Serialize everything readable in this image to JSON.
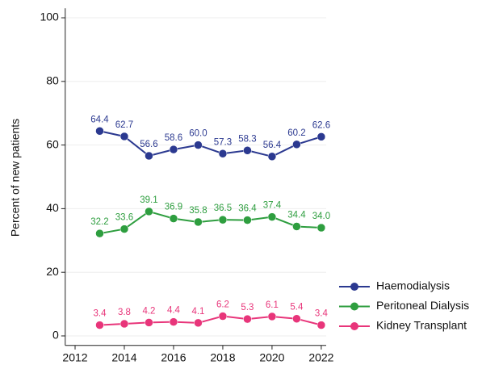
{
  "chart_data": {
    "type": "line",
    "y_label": "Percent of new patients",
    "x": [
      2013,
      2014,
      2015,
      2016,
      2017,
      2018,
      2019,
      2020,
      2021,
      2022
    ],
    "series": [
      {
        "name": "Haemodialysis",
        "color": "#2b3990",
        "values": [
          64.4,
          62.7,
          56.6,
          58.6,
          60.0,
          57.3,
          58.3,
          56.4,
          60.2,
          62.6
        ],
        "value_labels": [
          "64.4",
          "62.7",
          "56.6",
          "58.6",
          "60.0",
          "57.3",
          "58.3",
          "56.4",
          "60.2",
          "62.6"
        ]
      },
      {
        "name": "Peritoneal Dialysis",
        "color": "#2e9e3f",
        "values": [
          32.2,
          33.6,
          39.1,
          36.9,
          35.8,
          36.5,
          36.4,
          37.4,
          34.4,
          34.0
        ],
        "value_labels": [
          "32.2",
          "33.6",
          "39.1",
          "36.9",
          "35.8",
          "36.5",
          "36.4",
          "37.4",
          "34.4",
          "34.0"
        ]
      },
      {
        "name": "Kidney Transplant",
        "color": "#e8357a",
        "values": [
          3.4,
          3.8,
          4.2,
          4.4,
          4.1,
          6.2,
          5.3,
          6.1,
          5.4,
          3.4
        ],
        "value_labels": [
          "3.4",
          "3.8",
          "4.2",
          "4.4",
          "4.1",
          "6.2",
          "5.3",
          "6.1",
          "5.4",
          "3.4"
        ]
      }
    ],
    "xlim": [
      2011.6,
      2022.2
    ],
    "xticks": [
      2012,
      2014,
      2016,
      2018,
      2020,
      2022
    ],
    "ylim": [
      -3,
      103
    ],
    "yticks": [
      0,
      20,
      40,
      60,
      80,
      100
    ],
    "grid": true,
    "legend": "lower right"
  }
}
